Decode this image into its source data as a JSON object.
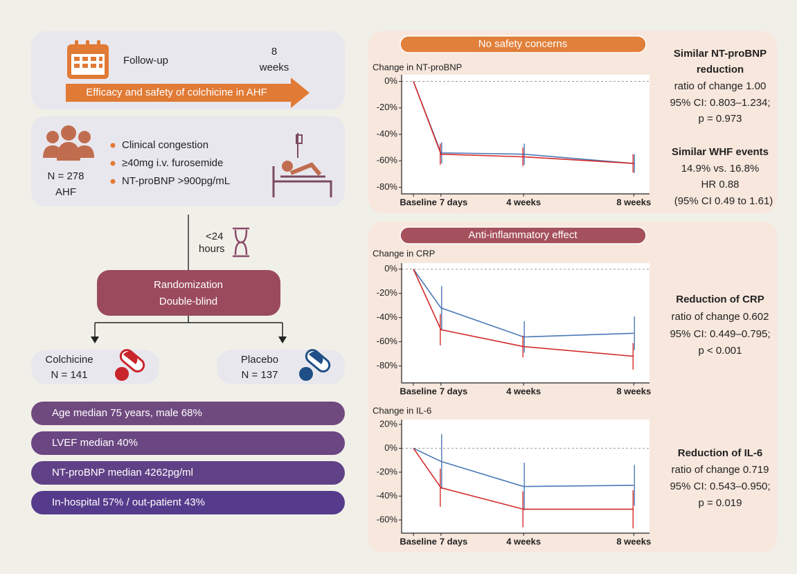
{
  "followup": {
    "label": "Follow-up",
    "duration": [
      "8",
      "weeks"
    ],
    "banner": "Efficacy and safety of colchicine in AHF"
  },
  "population": {
    "n": "N = 278",
    "group": "AHF",
    "criteria": [
      "Clinical congestion",
      "≥40mg i.v. furosemide",
      "NT-proBNP >900pg/mL"
    ]
  },
  "timing": [
    "<24",
    "hours"
  ],
  "randomization": [
    "Randomization",
    "Double-blind"
  ],
  "arms": [
    {
      "name": "Colchicine",
      "n": "N = 141"
    },
    {
      "name": "Placebo",
      "n": "N = 137"
    }
  ],
  "baseline": [
    "Age median 75 years, male 68%",
    "LVEF median 40%",
    "NT-proBNP median 4262pg/ml",
    "In-hospital 57% / out-patient 43%"
  ],
  "panels": [
    {
      "banner": "No safety concerns"
    },
    {
      "banner": "Anti-inflammatory effect"
    }
  ],
  "findings": [
    {
      "heading": [
        "Similar NT-proBNP",
        "reduction"
      ],
      "lines": [
        "ratio of change 1.00",
        "95% CI: 0.803–1.234;",
        "p = 0.973"
      ]
    },
    {
      "heading": [
        "Similar WHF events"
      ],
      "lines": [
        "14.9% vs. 16.8%",
        "HR 0.88",
        "(95% CI 0.49 to 1.61)"
      ]
    },
    {
      "heading": [
        "Reduction of CRP"
      ],
      "lines": [
        "ratio of change 0.602",
        "95% CI: 0.449–0.795;",
        "p < 0.001"
      ]
    },
    {
      "heading": [
        "Reduction of IL-6"
      ],
      "lines": [
        "ratio of change 0.719",
        "95% CI: 0.543–0.950;",
        "p = 0.019"
      ]
    }
  ],
  "chart_data": [
    {
      "type": "line",
      "title": "Change in NT-proBNP",
      "x": [
        0,
        7,
        28,
        56
      ],
      "xlim": [
        -3,
        60
      ],
      "xticks": [
        {
          "value": 0,
          "label": "Baseline"
        },
        {
          "value": 7,
          "label": "7 days"
        },
        {
          "value": 28,
          "label": "4 weeks"
        },
        {
          "value": 56,
          "label": "8 weeks"
        }
      ],
      "ylim": [
        -85,
        5
      ],
      "yticks": [
        {
          "value": 0,
          "label": "0%"
        },
        {
          "value": -20,
          "label": "-20%"
        },
        {
          "value": -40,
          "label": "-40%"
        },
        {
          "value": -60,
          "label": "-60%"
        },
        {
          "value": -80,
          "label": "-80%"
        }
      ],
      "hline": 0,
      "series": [
        {
          "color": "#4a78b5",
          "values": [
            0,
            -54,
            -55,
            -62
          ],
          "errors": [
            null,
            8,
            8,
            7
          ]
        },
        {
          "color": "#d42a2a",
          "values": [
            0,
            -55,
            -57,
            -62
          ],
          "errors": [
            null,
            8,
            7,
            7
          ]
        }
      ]
    },
    {
      "type": "line",
      "title": "Change in CRP",
      "x": [
        0,
        7,
        28,
        56
      ],
      "xlim": [
        -3,
        60
      ],
      "xticks": [
        {
          "value": 0,
          "label": "Baseline"
        },
        {
          "value": 7,
          "label": "7 days"
        },
        {
          "value": 28,
          "label": "4 weeks"
        },
        {
          "value": 56,
          "label": "8 weeks"
        }
      ],
      "ylim": [
        -94,
        5
      ],
      "yticks": [
        {
          "value": 0,
          "label": "0%"
        },
        {
          "value": -20,
          "label": "-20%"
        },
        {
          "value": -40,
          "label": "-40%"
        },
        {
          "value": -60,
          "label": "-60%"
        },
        {
          "value": -80,
          "label": "-80%"
        }
      ],
      "hline": 0,
      "series": [
        {
          "color": "#4a78b5",
          "values": [
            0,
            -32,
            -56,
            -53
          ],
          "errors": [
            null,
            18,
            13,
            14
          ]
        },
        {
          "color": "#d42a2a",
          "values": [
            0,
            -50,
            -64,
            -72
          ],
          "errors": [
            null,
            13,
            9,
            11
          ]
        }
      ]
    },
    {
      "type": "line",
      "title": "Change in IL-6",
      "x": [
        0,
        7,
        28,
        56
      ],
      "xlim": [
        -3,
        60
      ],
      "xticks": [
        {
          "value": 0,
          "label": "Baseline"
        },
        {
          "value": 7,
          "label": "7 days"
        },
        {
          "value": 28,
          "label": "4 weeks"
        },
        {
          "value": 56,
          "label": "8 weeks"
        }
      ],
      "ylim": [
        -71,
        24
      ],
      "yticks": [
        {
          "value": 20,
          "label": "20%"
        },
        {
          "value": 0,
          "label": "0%"
        },
        {
          "value": -20,
          "label": "-20%"
        },
        {
          "value": -40,
          "label": "-40%"
        },
        {
          "value": -60,
          "label": "-60%"
        }
      ],
      "hline": 0,
      "series": [
        {
          "color": "#4a78b5",
          "values": [
            0,
            -11,
            -32,
            -31
          ],
          "errors": [
            null,
            23,
            20,
            17
          ]
        },
        {
          "color": "#d42a2a",
          "values": [
            0,
            -33,
            -51,
            -51
          ],
          "errors": [
            null,
            16,
            15,
            16
          ]
        }
      ]
    }
  ]
}
